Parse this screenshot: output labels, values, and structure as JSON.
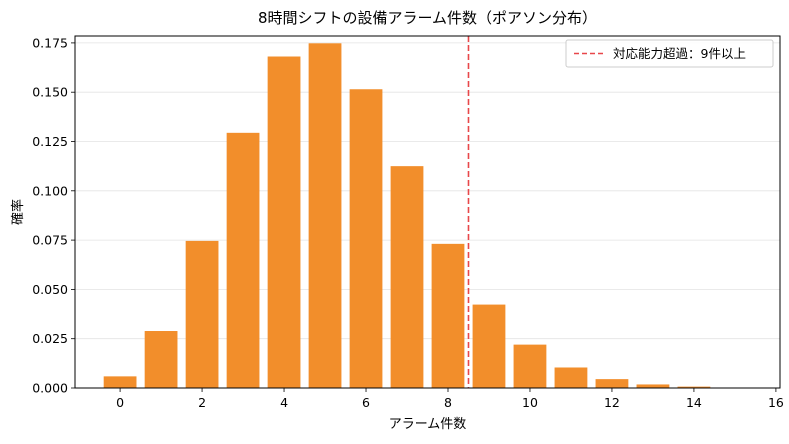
{
  "chart_data": {
    "type": "bar",
    "title": "8時間シフトの設備アラーム件数（ポアソン分布）",
    "xlabel": "アラーム件数",
    "ylabel": "確率",
    "x": [
      0,
      1,
      2,
      3,
      4,
      5,
      6,
      7,
      8,
      9,
      10,
      11,
      12,
      13,
      14,
      15
    ],
    "values": [
      0.0059,
      0.0289,
      0.0746,
      0.1294,
      0.1681,
      0.1748,
      0.1515,
      0.1125,
      0.0731,
      0.0423,
      0.022,
      0.0104,
      0.0045,
      0.0018,
      0.0007,
      0.0002
    ],
    "xlim": [
      -1.1,
      16.1
    ],
    "ylim": [
      0,
      0.1785
    ],
    "xticks": [
      0,
      2,
      4,
      6,
      8,
      10,
      12,
      14,
      16
    ],
    "xtick_labels": [
      "0",
      "2",
      "4",
      "6",
      "8",
      "10",
      "12",
      "14",
      "16"
    ],
    "yticks": [
      0,
      0.025,
      0.05,
      0.075,
      0.1,
      0.125,
      0.15,
      0.175
    ],
    "ytick_labels": [
      "0.000",
      "0.025",
      "0.050",
      "0.075",
      "0.100",
      "0.125",
      "0.150",
      "0.175"
    ],
    "threshold": {
      "x": 8.5,
      "label": "対応能力超過：9件以上",
      "style": "dashed",
      "color": "#e8474a"
    },
    "bar_color": "#f28e2b",
    "grid": "horizontal",
    "legend_position": "top-right"
  }
}
